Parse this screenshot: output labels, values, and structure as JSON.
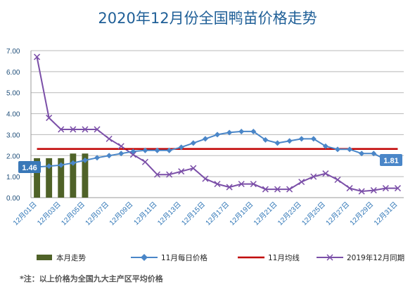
{
  "chart_data": {
    "type": "line",
    "title": "2020年12月份全国鸭苗价格走势",
    "ylim": [
      0,
      7
    ],
    "ytick_labels": [
      "0.00",
      "1.00",
      "2.00",
      "3.00",
      "4.00",
      "5.00",
      "6.00",
      "7.00"
    ],
    "grid": true,
    "legend_placement": "bottom",
    "categories": [
      "12月01日",
      "12月02日",
      "12月03日",
      "12月04日",
      "12月05日",
      "12月06日",
      "12月07日",
      "12月08日",
      "12月09日",
      "12月10日",
      "12月11日",
      "12月12日",
      "12月13日",
      "12月14日",
      "12月15日",
      "12月16日",
      "12月17日",
      "12月18日",
      "12月19日",
      "12月20日",
      "12月21日",
      "12月22日",
      "12月23日",
      "12月24日",
      "12月25日",
      "12月26日",
      "12月27日",
      "12月28日",
      "12月29日",
      "12月30日",
      "12月31日"
    ],
    "series": [
      {
        "name": "本月走势",
        "type": "bar",
        "color": "#4f6228",
        "values": [
          1.88,
          1.88,
          1.88,
          2.1,
          2.1,
          null,
          null,
          null,
          null,
          null,
          null,
          null,
          null,
          null,
          null,
          null,
          null,
          null,
          null,
          null,
          null,
          null,
          null,
          null,
          null,
          null,
          null,
          null,
          null,
          null,
          null
        ]
      },
      {
        "name": "11月每日价格",
        "type": "line",
        "marker": "diamond",
        "color": "#4a86c8",
        "values": [
          1.46,
          1.5,
          1.55,
          1.65,
          1.78,
          1.9,
          2.0,
          2.1,
          2.2,
          2.25,
          2.25,
          2.25,
          2.4,
          2.6,
          2.8,
          3.0,
          3.1,
          3.15,
          3.15,
          2.75,
          2.6,
          2.7,
          2.8,
          2.8,
          2.45,
          2.3,
          2.3,
          2.1,
          2.1,
          1.81,
          null
        ]
      },
      {
        "name": "11月均线",
        "type": "line",
        "color": "#c00000",
        "values": [
          2.32,
          2.32,
          2.32,
          2.32,
          2.32,
          2.32,
          2.32,
          2.32,
          2.32,
          2.32,
          2.32,
          2.32,
          2.32,
          2.32,
          2.32,
          2.32,
          2.32,
          2.32,
          2.32,
          2.32,
          2.32,
          2.32,
          2.32,
          2.32,
          2.32,
          2.32,
          2.32,
          2.32,
          2.32,
          2.32,
          2.32
        ]
      },
      {
        "name": "2019年12月同期",
        "type": "line",
        "marker": "x",
        "color": "#7b4fa8",
        "values": [
          6.7,
          3.8,
          3.25,
          3.25,
          3.25,
          3.25,
          2.8,
          2.45,
          2.05,
          1.7,
          1.1,
          1.1,
          1.25,
          1.4,
          0.9,
          0.65,
          0.5,
          0.65,
          0.65,
          0.4,
          0.4,
          0.4,
          0.75,
          1.0,
          1.15,
          0.85,
          0.45,
          0.3,
          0.35,
          0.45,
          0.45
        ]
      }
    ],
    "data_labels": {
      "first": "1.46",
      "last": "1.81",
      "first_color": "#3a78b8",
      "last_color": "#4a86c8"
    },
    "note": "*注：以上价格为全国九大主产区平均价格"
  }
}
